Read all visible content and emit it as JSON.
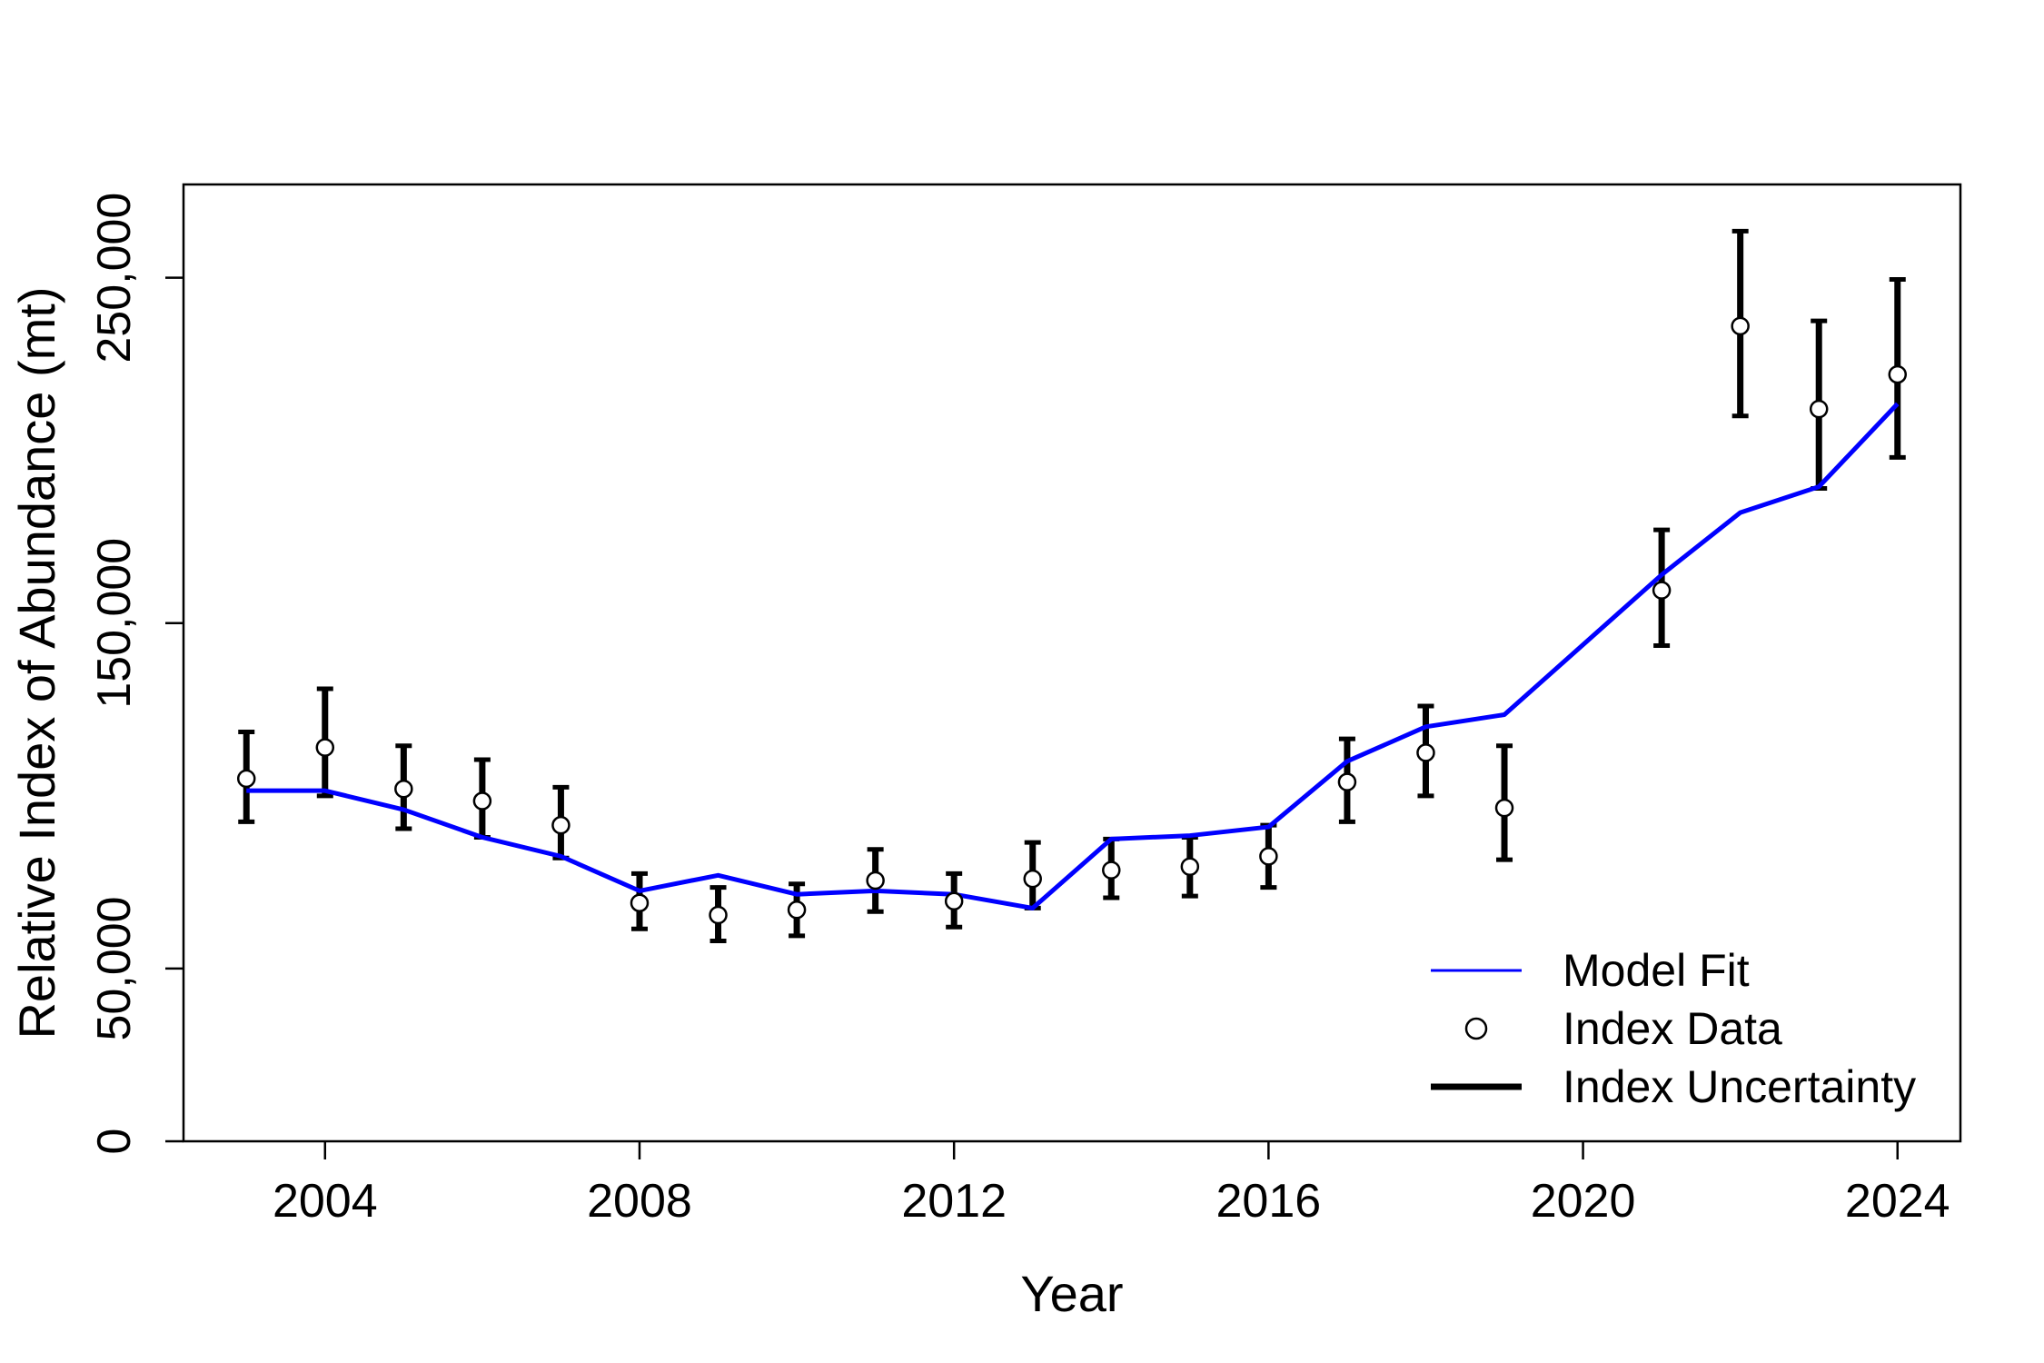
{
  "chart_data": {
    "type": "line",
    "title": "",
    "xlabel": "Year",
    "ylabel": "Relative Index of Abundance (mt)",
    "xlim": [
      2002.2,
      2024.8
    ],
    "ylim": [
      0,
      277000
    ],
    "x_ticks": [
      2004,
      2008,
      2012,
      2016,
      2020,
      2024
    ],
    "y_ticks": [
      0,
      50000,
      150000,
      250000
    ],
    "y_tick_labels": [
      "0",
      "50,000",
      "150,000",
      "250,000"
    ],
    "grid": false,
    "legend_position": "bottom-right",
    "series": [
      {
        "name": "Model Fit",
        "style": "line",
        "color": "#0000ff",
        "x": [
          2003,
          2004,
          2005,
          2006,
          2007,
          2008,
          2009,
          2010,
          2011,
          2012,
          2013,
          2014,
          2015,
          2016,
          2017,
          2018,
          2019,
          2021,
          2022,
          2023,
          2024
        ],
        "y": [
          101500,
          101500,
          96000,
          88000,
          82500,
          72500,
          77000,
          71500,
          72500,
          71500,
          67500,
          87500,
          88500,
          91000,
          110000,
          120000,
          123500,
          164000,
          182000,
          189500,
          213500
        ]
      },
      {
        "name": "Index Data",
        "style": "points",
        "color": "#000000",
        "x": [
          2003,
          2004,
          2005,
          2006,
          2007,
          2008,
          2009,
          2010,
          2011,
          2012,
          2013,
          2014,
          2015,
          2016,
          2017,
          2018,
          2019,
          2021,
          2022,
          2023,
          2024
        ],
        "y": [
          105000,
          114000,
          102000,
          98500,
          91500,
          69000,
          65500,
          67000,
          75500,
          69500,
          76000,
          78500,
          79500,
          82500,
          104000,
          112500,
          96500,
          159500,
          236000,
          212000,
          222000
        ]
      },
      {
        "name": "Index Uncertainty",
        "style": "errorbars",
        "color": "#000000",
        "x": [
          2003,
          2004,
          2005,
          2006,
          2007,
          2008,
          2009,
          2010,
          2011,
          2012,
          2013,
          2014,
          2015,
          2016,
          2017,
          2018,
          2019,
          2021,
          2022,
          2023,
          2024
        ],
        "lower": [
          92500,
          100000,
          90500,
          88000,
          82000,
          61500,
          58000,
          59500,
          66500,
          62000,
          67500,
          70500,
          71000,
          73500,
          92500,
          100000,
          81500,
          143500,
          210000,
          189000,
          198000
        ],
        "upper": [
          118500,
          131000,
          114500,
          110500,
          102500,
          77500,
          73500,
          74500,
          84500,
          77500,
          86500,
          87500,
          88000,
          91500,
          116500,
          126000,
          114500,
          177000,
          263500,
          237500,
          249500
        ]
      }
    ],
    "legend": [
      {
        "label": "Model Fit",
        "symbol": "line",
        "color": "#0000ff"
      },
      {
        "label": "Index Data",
        "symbol": "circle",
        "color": "#000000"
      },
      {
        "label": "Index Uncertainty",
        "symbol": "thick-line",
        "color": "#000000"
      }
    ]
  }
}
